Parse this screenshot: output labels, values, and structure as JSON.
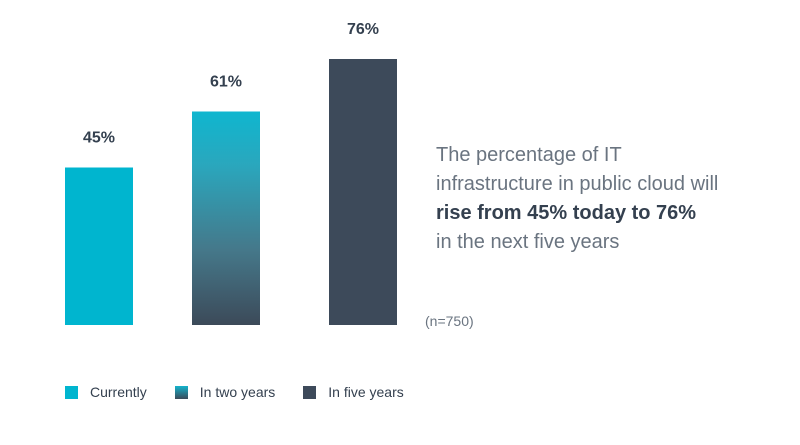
{
  "chart_data": {
    "type": "bar",
    "categories": [
      "Currently",
      "In two years",
      "In five years"
    ],
    "values": [
      45,
      61,
      76
    ],
    "value_labels": [
      "45%",
      "61%",
      "76%"
    ],
    "ylim": [
      0,
      76
    ],
    "colors": [
      "#00b5cf",
      "gradient:#14b3cc-#3c4a59",
      "#3d4a5a"
    ],
    "legend": [
      {
        "label": "Currently",
        "color": "#00b5cf"
      },
      {
        "label": "In two years",
        "color": "gradient:#14b3cc-#3c4a59"
      },
      {
        "label": "In five years",
        "color": "#3d4a5a"
      }
    ],
    "legend_position": "bottom-left"
  },
  "callout": {
    "line1": "The percentage of IT",
    "line2": "infrastructure in public cloud will",
    "line3_bold": "rise from 45% today to 76%",
    "line4": "in the next five years"
  },
  "sample_note": "(n=750)"
}
